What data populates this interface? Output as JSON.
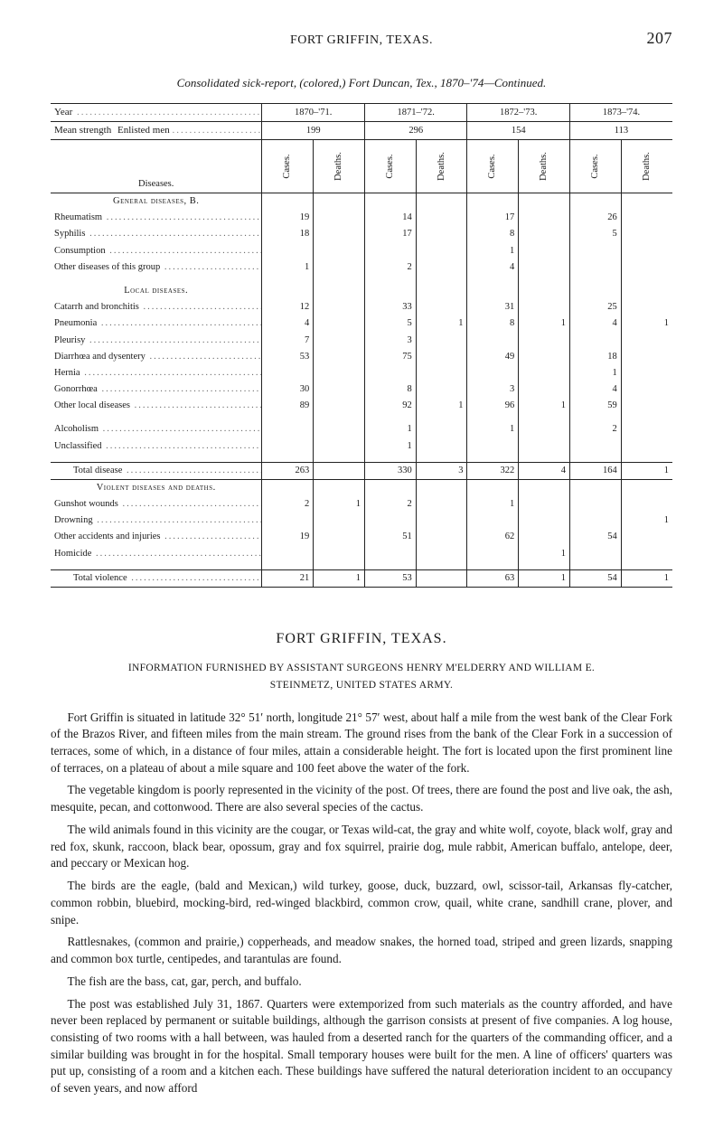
{
  "colors": {
    "text": "#1a1a1a",
    "dots": "#888888",
    "rule": "#222222",
    "background": "#ffffff"
  },
  "typography": {
    "body_font": "Times New Roman / serif",
    "body_size_pt": 10,
    "table_size_pt": 8,
    "heading_size_pt": 12
  },
  "page": {
    "running_title": "FORT GRIFFIN, TEXAS.",
    "page_number": "207",
    "subhead": "Consolidated sick-report, (colored,) Fort Duncan, Tex., 1870–'74—Continued."
  },
  "table": {
    "year_label": "Year",
    "mean_label": "Mean strength",
    "mean_suffix": "Enlisted men",
    "diseases_label": "Diseases.",
    "col_sub": {
      "cases": "Cases.",
      "deaths": "Deaths."
    },
    "years": [
      "1870–'71.",
      "1871–'72.",
      "1872–'73.",
      "1873–'74."
    ],
    "mean_strength": [
      "199",
      "296",
      "154",
      "113"
    ],
    "sections": [
      {
        "title": "General diseases, B.",
        "rows": [
          {
            "label": "Rheumatism",
            "v": [
              "19",
              "",
              "14",
              "",
              "17",
              "",
              "26",
              ""
            ]
          },
          {
            "label": "Syphilis",
            "v": [
              "18",
              "",
              "17",
              "",
              "8",
              "",
              "5",
              ""
            ]
          },
          {
            "label": "Consumption",
            "v": [
              "",
              "",
              "",
              "",
              "1",
              "",
              "",
              ""
            ]
          },
          {
            "label": "Other diseases of this group",
            "v": [
              "1",
              "",
              "2",
              "",
              "4",
              "",
              "",
              ""
            ]
          }
        ]
      },
      {
        "title": "Local diseases.",
        "rows": [
          {
            "label": "Catarrh and bronchitis",
            "v": [
              "12",
              "",
              "33",
              "",
              "31",
              "",
              "25",
              ""
            ]
          },
          {
            "label": "Pneumonia",
            "v": [
              "4",
              "",
              "5",
              "1",
              "8",
              "1",
              "4",
              "1"
            ]
          },
          {
            "label": "Pleurisy",
            "v": [
              "7",
              "",
              "3",
              "",
              "",
              "",
              "",
              ""
            ]
          },
          {
            "label": "Diarrhœa and dysentery",
            "v": [
              "53",
              "",
              "75",
              "",
              "49",
              "",
              "18",
              ""
            ]
          },
          {
            "label": "Hernia",
            "v": [
              "",
              "",
              "",
              "",
              "",
              "",
              "1",
              ""
            ]
          },
          {
            "label": "Gonorrhœa",
            "v": [
              "30",
              "",
              "8",
              "",
              "3",
              "",
              "4",
              ""
            ]
          },
          {
            "label": "Other local diseases",
            "v": [
              "89",
              "",
              "92",
              "1",
              "96",
              "1",
              "59",
              ""
            ]
          }
        ]
      },
      {
        "title": "",
        "rows": [
          {
            "label": "Alcoholism",
            "v": [
              "",
              "",
              "1",
              "",
              "1",
              "",
              "2",
              ""
            ]
          },
          {
            "label": "Unclassified",
            "v": [
              "",
              "",
              "1",
              "",
              "",
              "",
              "",
              ""
            ]
          }
        ]
      },
      {
        "title": "",
        "total": true,
        "rows": [
          {
            "label": "Total disease",
            "indent": true,
            "v": [
              "263",
              "",
              "330",
              "3",
              "322",
              "4",
              "164",
              "1"
            ]
          }
        ]
      },
      {
        "title": "Violent diseases and deaths.",
        "rows": [
          {
            "label": "Gunshot wounds",
            "v": [
              "2",
              "1",
              "2",
              "",
              "1",
              "",
              "",
              ""
            ]
          },
          {
            "label": "Drowning",
            "v": [
              "",
              "",
              "",
              "",
              "",
              "",
              "",
              "1"
            ]
          },
          {
            "label": "Other accidents and injuries",
            "v": [
              "19",
              "",
              "51",
              "",
              "62",
              "",
              "54",
              ""
            ]
          },
          {
            "label": "Homicide",
            "v": [
              "",
              "",
              "",
              "",
              "",
              "1",
              "",
              ""
            ]
          }
        ]
      },
      {
        "title": "",
        "total": true,
        "rows": [
          {
            "label": "Total violence",
            "indent": true,
            "v": [
              "21",
              "1",
              "53",
              "",
              "63",
              "1",
              "54",
              "1"
            ]
          }
        ]
      }
    ]
  },
  "article": {
    "heading": "FORT GRIFFIN, TEXAS.",
    "byline1": "INFORMATION FURNISHED BY ASSISTANT SURGEONS HENRY M'ELDERRY AND WILLIAM E.",
    "byline2": "STEINMETZ, UNITED STATES ARMY.",
    "paragraphs": [
      "Fort Griffin is situated in latitude 32° 51′ north, longitude 21° 57′ west, about half a mile from the west bank of the Clear Fork of the Brazos River, and fifteen miles from the main stream. The ground rises from the bank of the Clear Fork in a succession of terraces, some of which, in a distance of four miles, attain a considerable height. The fort is located upon the first prominent line of terraces, on a plateau of about a mile square and 100 feet above the water of the fork.",
      "The vegetable kingdom is poorly represented in the vicinity of the post. Of trees, there are found the post and live oak, the ash, mesquite, pecan, and cottonwood. There are also several species of the cactus.",
      "The wild animals found in this vicinity are the cougar, or Texas wild-cat, the gray and white wolf, coyote, black wolf, gray and red fox, skunk, raccoon, black bear, opossum, gray and fox squirrel, prairie dog, mule rabbit, American buffalo, antelope, deer, and peccary or Mexican hog.",
      "The birds are the eagle, (bald and Mexican,) wild turkey, goose, duck, buzzard, owl, scissor-tail, Arkansas fly-catcher, common robbin, bluebird, mocking-bird, red-winged blackbird, common crow, quail, white crane, sandhill crane, plover, and snipe.",
      "Rattlesnakes, (common and prairie,) copperheads, and meadow snakes, the horned toad, striped and green lizards, snapping and common box turtle, centipedes, and tarantulas are found.",
      "The fish are the bass, cat, gar, perch, and buffalo.",
      "The post was established July 31, 1867. Quarters were extemporized from such materials as the country afforded, and have never been replaced by permanent or suitable buildings, although the garrison consists at present of five companies. A log house, consisting of two rooms with a hall between, was hauled from a deserted ranch for the quarters of the commanding officer, and a similar building was brought in for the hospital. Small temporary houses were built for the men. A line of officers' quarters was put up, consisting of a room and a kitchen each. These buildings have suffered the natural deterioration incident to an occupancy of seven years, and now afford"
    ]
  }
}
